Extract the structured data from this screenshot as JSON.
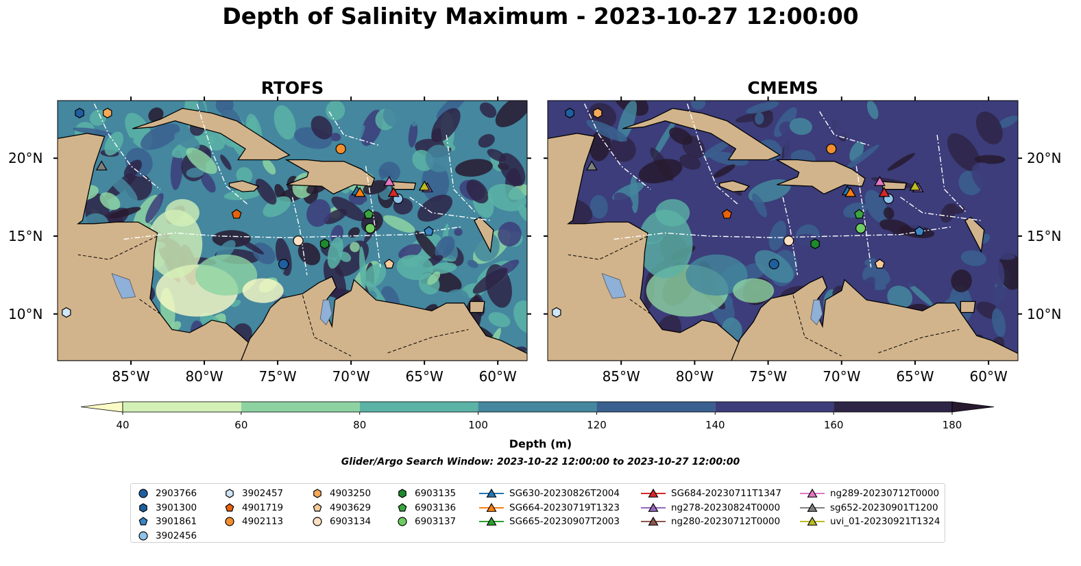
{
  "title": "Depth of Salinity Maximum - 2023-10-27 12:00:00",
  "panels": [
    {
      "title": "RTOFS"
    },
    {
      "title": "CMEMS"
    }
  ],
  "map": {
    "lon_ticks": [
      "85°W",
      "80°W",
      "75°W",
      "70°W",
      "65°W",
      "60°W"
    ],
    "lat_ticks": [
      "20°N",
      "15°N",
      "10°N"
    ],
    "land_color": "#d2b48c",
    "lake_color": "#8fb0d8"
  },
  "colorbar": {
    "label": "Depth (m)",
    "ticks": [
      "40",
      "60",
      "80",
      "100",
      "120",
      "140",
      "160",
      "180"
    ],
    "levels": [
      40,
      60,
      80,
      100,
      120,
      140,
      160,
      180
    ],
    "colors": [
      "#fbfbc6",
      "#d3f0b6",
      "#8dd3a2",
      "#5bb3a6",
      "#44879e",
      "#3a608f",
      "#3c3d7a",
      "#2e2446",
      "#271a2f"
    ],
    "extend": "both"
  },
  "search_window": "Glider/Argo Search Window: 2023-10-22 12:00:00 to 2023-10-27 12:00:00",
  "legend": {
    "columns": [
      [
        {
          "label": "2903766",
          "marker": "circle",
          "color": "#1f5fa0"
        },
        {
          "label": "3901300",
          "marker": "hexagon",
          "color": "#1f5fa0"
        },
        {
          "label": "3901861",
          "marker": "pentagon",
          "color": "#3b84c4"
        },
        {
          "label": "3902456",
          "marker": "circle",
          "color": "#8fc2e8"
        }
      ],
      [
        {
          "label": "3902457",
          "marker": "hexagon",
          "color": "#cfe6f7"
        },
        {
          "label": "4901719",
          "marker": "pentagon",
          "color": "#e8620c"
        },
        {
          "label": "4902113",
          "marker": "circle",
          "color": "#f38f2e"
        }
      ],
      [
        {
          "label": "4903250",
          "marker": "hexagon",
          "color": "#f6a95a"
        },
        {
          "label": "4903629",
          "marker": "pentagon",
          "color": "#f9c99a"
        },
        {
          "label": "6903134",
          "marker": "circle",
          "color": "#fde0c4"
        }
      ],
      [
        {
          "label": "6903135",
          "marker": "hexagon",
          "color": "#1f8a2c"
        },
        {
          "label": "6903136",
          "marker": "pentagon",
          "color": "#3aa53e"
        },
        {
          "label": "6903137",
          "marker": "circle",
          "color": "#6fcc62"
        }
      ],
      [
        {
          "label": "SG630-20230826T2004",
          "marker": "triangle",
          "color": "#1f77b4"
        },
        {
          "label": "SG664-20230719T1323",
          "marker": "triangle",
          "color": "#ff7f0e"
        },
        {
          "label": "SG665-20230907T2003",
          "marker": "triangle",
          "color": "#2ca02c"
        }
      ],
      [
        {
          "label": "SG684-20230711T1347",
          "marker": "triangle",
          "color": "#d62728"
        },
        {
          "label": "ng278-20230824T0000",
          "marker": "triangle",
          "color": "#9467bd"
        },
        {
          "label": "ng280-20230712T0000",
          "marker": "triangle",
          "color": "#8c564b"
        }
      ],
      [
        {
          "label": "ng289-20230712T0000",
          "marker": "triangle",
          "color": "#e377c2"
        },
        {
          "label": "sg652-20230901T1200",
          "marker": "triangle",
          "color": "#7f7f7f"
        },
        {
          "label": "uvi_01-20230921T1324",
          "marker": "triangle",
          "color": "#bcbd22"
        }
      ]
    ]
  },
  "observations": [
    {
      "id": "2903766",
      "lon": -74.6,
      "lat": 13.2,
      "marker": "circle",
      "color": "#1f5fa0"
    },
    {
      "id": "3901300",
      "lon": -88.5,
      "lat": 22.9,
      "marker": "hexagon",
      "color": "#1f5fa0"
    },
    {
      "id": "3901861",
      "lon": -64.7,
      "lat": 15.3,
      "marker": "pentagon",
      "color": "#3b84c4"
    },
    {
      "id": "3902456",
      "lon": -66.8,
      "lat": 17.4,
      "marker": "circle",
      "color": "#8fc2e8"
    },
    {
      "id": "3902457",
      "lon": -89.4,
      "lat": 10.1,
      "marker": "hexagon",
      "color": "#cfe6f7"
    },
    {
      "id": "4901719",
      "lon": -77.8,
      "lat": 16.4,
      "marker": "pentagon",
      "color": "#e8620c"
    },
    {
      "id": "4902113",
      "lon": -70.7,
      "lat": 20.6,
      "marker": "circle",
      "color": "#f38f2e"
    },
    {
      "id": "4903250",
      "lon": -86.6,
      "lat": 22.9,
      "marker": "hexagon",
      "color": "#f6a95a"
    },
    {
      "id": "4903629",
      "lon": -67.4,
      "lat": 13.2,
      "marker": "pentagon",
      "color": "#f9c99a"
    },
    {
      "id": "6903134",
      "lon": -73.6,
      "lat": 14.7,
      "marker": "circle",
      "color": "#fde0c4"
    },
    {
      "id": "6903135",
      "lon": -71.8,
      "lat": 14.5,
      "marker": "hexagon",
      "color": "#1f8a2c"
    },
    {
      "id": "6903136",
      "lon": -68.8,
      "lat": 16.4,
      "marker": "pentagon",
      "color": "#3aa53e"
    },
    {
      "id": "6903137",
      "lon": -68.7,
      "lat": 15.5,
      "marker": "circle",
      "color": "#6fcc62"
    },
    {
      "id": "SG630-20230826T2004",
      "lon": -69.6,
      "lat": 17.9,
      "marker": "triangle",
      "color": "#1f77b4"
    },
    {
      "id": "SG664-20230719T1323",
      "lon": -69.4,
      "lat": 17.8,
      "marker": "triangle",
      "color": "#ff7f0e"
    },
    {
      "id": "SG684-20230711T1347",
      "lon": -67.1,
      "lat": 17.8,
      "marker": "triangle",
      "color": "#d62728"
    },
    {
      "id": "ng278-20230824T0000",
      "lon": -64.8,
      "lat": 18.1,
      "marker": "triangle",
      "color": "#9467bd"
    },
    {
      "id": "ng289-20230712T0000",
      "lon": -67.4,
      "lat": 18.5,
      "marker": "triangle",
      "color": "#e377c2"
    },
    {
      "id": "sg652-20230901T1200",
      "lon": -87.0,
      "lat": 19.5,
      "marker": "triangle",
      "color": "#7f7f7f"
    },
    {
      "id": "uvi_01-20230921T1324",
      "lon": -65.0,
      "lat": 18.2,
      "marker": "triangle",
      "color": "#bcbd22"
    }
  ]
}
